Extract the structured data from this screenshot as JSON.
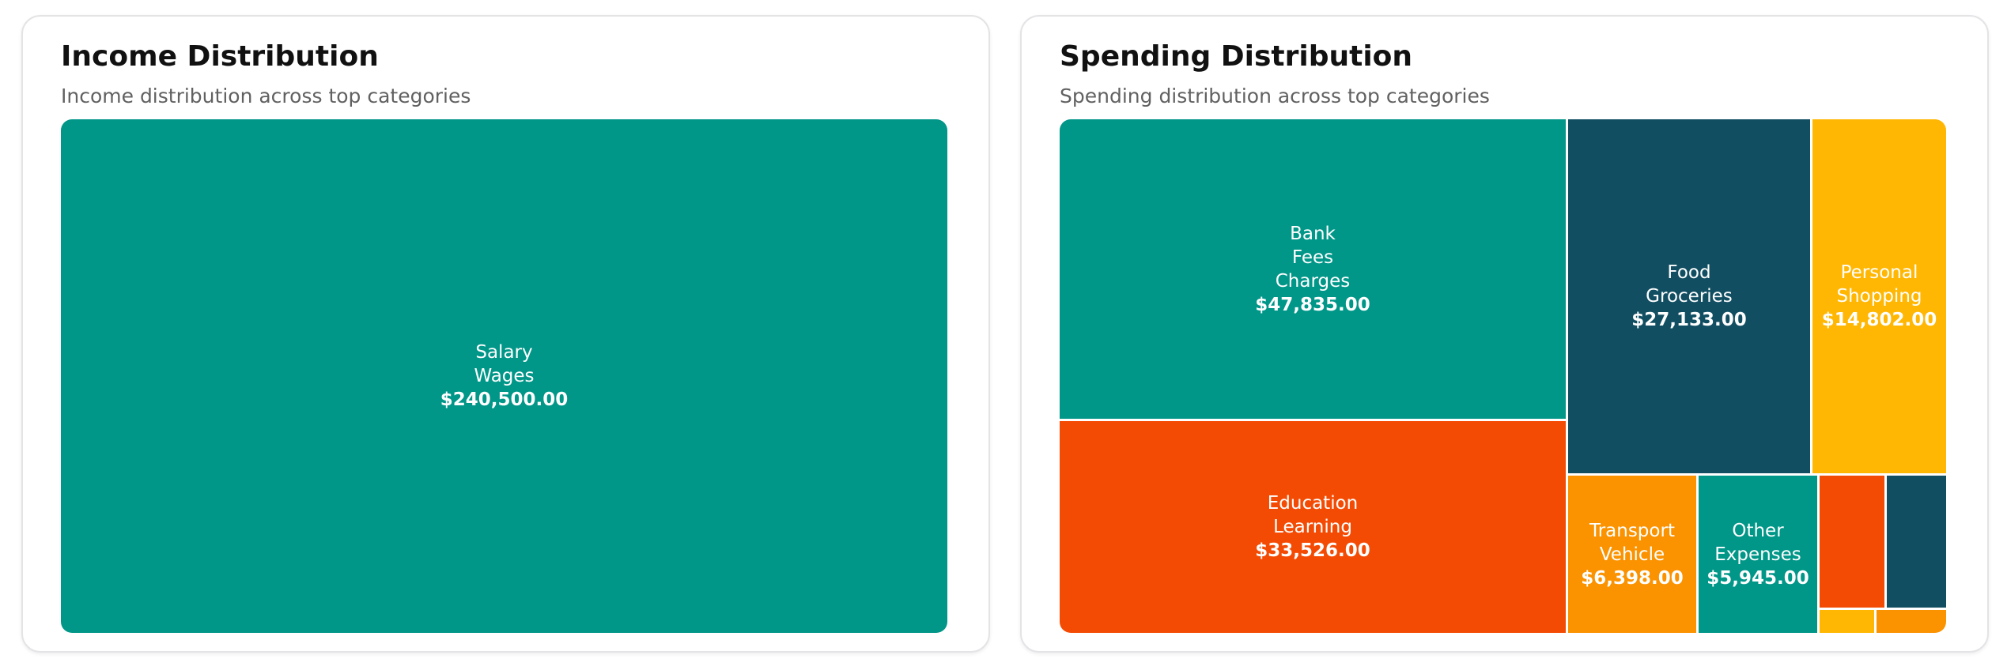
{
  "colors": {
    "teal": "#009688",
    "navy": "#124e62",
    "amber": "#ffb703",
    "orange_red": "#f44b04",
    "orange": "#fb9200"
  },
  "income_card": {
    "title": "Income Distribution",
    "subtitle": "Income distribution across top categories"
  },
  "spending_card": {
    "title": "Spending Distribution",
    "subtitle": "Spending distribution across top categories"
  },
  "chart_data": [
    {
      "type": "treemap",
      "title": "Income Distribution",
      "subtitle": "Income distribution across top categories",
      "items": [
        {
          "name": "Salary Wages",
          "label_lines": [
            "Salary",
            "Wages"
          ],
          "value": 240500.0,
          "value_label": "$240,500.00",
          "color": "#009688"
        }
      ]
    },
    {
      "type": "treemap",
      "title": "Spending Distribution",
      "subtitle": "Spending distribution across top categories",
      "items": [
        {
          "name": "Bank Fees Charges",
          "label_lines": [
            "Bank",
            "Fees",
            "Charges"
          ],
          "value": 47835.0,
          "value_label": "$47,835.00",
          "color": "#009688"
        },
        {
          "name": "Education Learning",
          "label_lines": [
            "Education",
            "Learning"
          ],
          "value": 33526.0,
          "value_label": "$33,526.00",
          "color": "#f44b04"
        },
        {
          "name": "Food Groceries",
          "label_lines": [
            "Food",
            "Groceries"
          ],
          "value": 27133.0,
          "value_label": "$27,133.00",
          "color": "#124e62"
        },
        {
          "name": "Personal Shopping",
          "label_lines": [
            "Personal",
            "Shopping"
          ],
          "value": 14802.0,
          "value_label": "$14,802.00",
          "color": "#ffb703"
        },
        {
          "name": "Transport Vehicle",
          "label_lines": [
            "Transport",
            "Vehicle"
          ],
          "value": 6398.0,
          "value_label": "$6,398.00",
          "color": "#fb9200"
        },
        {
          "name": "Other Expenses",
          "label_lines": [
            "Other",
            "Expenses"
          ],
          "value": 5945.0,
          "value_label": "$5,945.00",
          "color": "#009688"
        },
        {
          "name": "",
          "label_lines": [],
          "value": 2800,
          "value_label": "",
          "color": "#f44b04"
        },
        {
          "name": "",
          "label_lines": [],
          "value": 2500,
          "value_label": "",
          "color": "#124e62"
        },
        {
          "name": "",
          "label_lines": [],
          "value": 400,
          "value_label": "",
          "color": "#ffb703"
        },
        {
          "name": "",
          "label_lines": [],
          "value": 490,
          "value_label": "",
          "color": "#fb9200"
        }
      ]
    }
  ]
}
